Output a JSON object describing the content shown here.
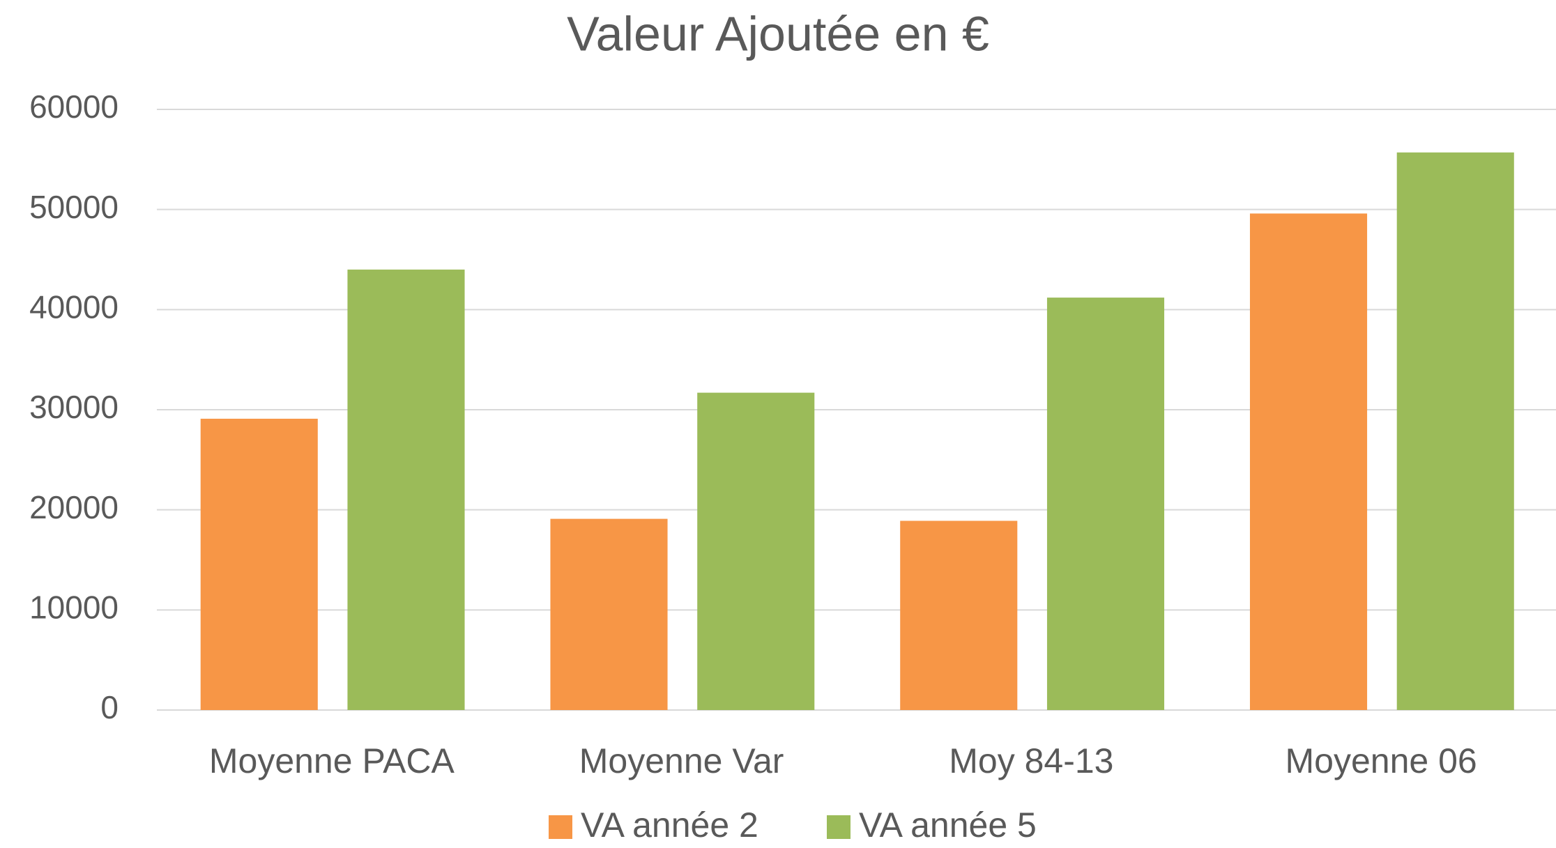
{
  "chart_data": {
    "type": "bar",
    "title": "Valeur Ajoutée en €",
    "categories": [
      "Moyenne PACA",
      "Moyenne Var",
      "Moy 84-13",
      "Moyenne 06"
    ],
    "series": [
      {
        "name": "VA année 2",
        "color": "#f79646",
        "values": [
          29100,
          19100,
          18900,
          49600
        ]
      },
      {
        "name": "VA année 5",
        "color": "#9bbb59",
        "values": [
          44000,
          31700,
          41200,
          55700
        ]
      }
    ],
    "ylim": [
      0,
      60000
    ],
    "yticks": [
      0,
      10000,
      20000,
      30000,
      40000,
      50000,
      60000
    ],
    "grid": true,
    "legend": "bottom"
  }
}
